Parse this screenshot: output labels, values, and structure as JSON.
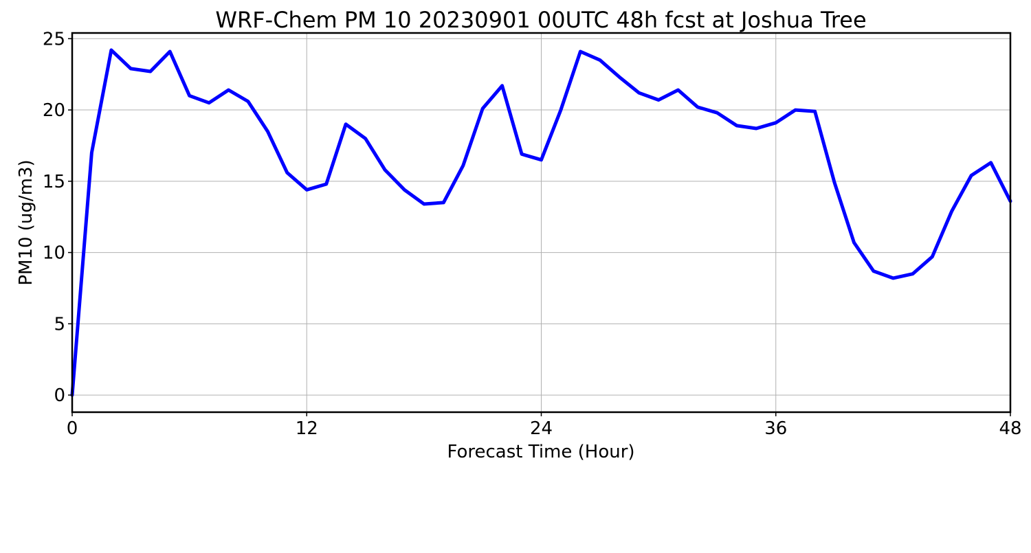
{
  "chart_data": {
    "type": "line",
    "title": "WRF-Chem PM 10  20230901 00UTC 48h fcst at Joshua Tree",
    "xlabel": "Forecast Time (Hour)",
    "ylabel": "PM10  (ug/m3)",
    "xlim": [
      0,
      48
    ],
    "ylim": [
      -1.2,
      25.4
    ],
    "xticks": [
      0,
      12,
      24,
      36,
      48
    ],
    "yticks": [
      0,
      5,
      10,
      15,
      20,
      25
    ],
    "grid": true,
    "line_color": "#0000ff",
    "grid_color": "#b0b0b0",
    "series": [
      {
        "x": [
          0,
          1,
          2,
          3,
          4,
          5,
          6,
          7,
          8,
          9,
          10,
          11,
          12,
          13,
          14,
          15,
          16,
          17,
          18,
          19,
          20,
          21,
          22,
          23,
          24,
          25,
          26,
          27,
          28,
          29,
          30,
          31,
          32,
          33,
          34,
          35,
          36,
          37,
          38,
          39,
          40,
          41,
          42,
          43,
          44,
          45,
          46,
          47,
          48
        ],
        "values": [
          0.0,
          17.0,
          24.2,
          22.9,
          22.7,
          24.1,
          21.0,
          20.5,
          21.4,
          20.6,
          18.5,
          15.6,
          14.4,
          14.8,
          19.0,
          18.0,
          15.8,
          14.4,
          13.4,
          13.5,
          16.1,
          20.1,
          21.7,
          16.9,
          16.5,
          20.0,
          24.1,
          23.5,
          22.3,
          21.2,
          20.7,
          21.4,
          20.2,
          19.8,
          18.9,
          18.7,
          19.1,
          20.0,
          19.9,
          14.9,
          10.7,
          8.7,
          8.2,
          8.5,
          9.7,
          12.9,
          15.4,
          16.3,
          13.6
        ]
      }
    ]
  }
}
